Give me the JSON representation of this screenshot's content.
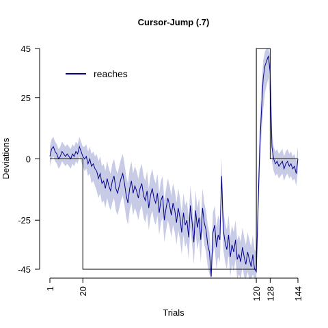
{
  "chart_data": {
    "type": "line",
    "title": "Cursor-Jump (.7)",
    "xlabel": "Trials",
    "ylabel": "Deviations",
    "xlim": [
      1,
      144
    ],
    "ylim": [
      -45,
      45
    ],
    "x_ticks": [
      1,
      20,
      120,
      128,
      144
    ],
    "y_ticks": [
      45,
      25,
      0,
      -25,
      -45
    ],
    "x_tick_labels": [
      "1",
      "20",
      "120",
      "128",
      "144"
    ],
    "y_tick_labels": [
      "45",
      "25",
      "0",
      "-25",
      "-45"
    ],
    "legend": {
      "position": "top-left",
      "entries": [
        {
          "label": "reaches",
          "color": "#00008b"
        }
      ]
    },
    "colors": {
      "line": "#00008b",
      "band": "#c8cbe6",
      "schedule": "#000000"
    },
    "schedule": {
      "x": [
        1,
        20,
        20,
        120,
        120,
        128,
        128,
        144
      ],
      "y": [
        0,
        0,
        -45,
        -45,
        45,
        45,
        0,
        0
      ]
    },
    "series": [
      {
        "name": "reaches",
        "values": [
          1,
          4,
          5,
          3,
          2,
          0,
          1,
          3,
          2,
          1,
          2,
          1,
          0,
          2,
          1,
          3,
          2,
          5,
          3,
          1,
          0,
          1,
          -2,
          0,
          -3,
          -2,
          -4,
          -5,
          -8,
          -6,
          -10,
          -9,
          -12,
          -8,
          -11,
          -13,
          -9,
          -7,
          -12,
          -14,
          -11,
          -8,
          -6,
          -10,
          -15,
          -18,
          -12,
          -9,
          -14,
          -11,
          -13,
          -16,
          -12,
          -10,
          -15,
          -17,
          -13,
          -20,
          -15,
          -12,
          -16,
          -18,
          -14,
          -22,
          -17,
          -15,
          -25,
          -20,
          -16,
          -19,
          -23,
          -18,
          -21,
          -26,
          -20,
          -24,
          -30,
          -22,
          -27,
          -25,
          -32,
          -19,
          -26,
          -34,
          -21,
          -28,
          -24,
          -33,
          -20,
          -26,
          -29,
          -35,
          -38,
          -48,
          -30,
          -27,
          -36,
          -31,
          -33,
          -7,
          -29,
          -34,
          -37,
          -31,
          -40,
          -35,
          -38,
          -33,
          -41,
          -39,
          -42,
          -36,
          -40,
          -43,
          -38,
          -41,
          -44,
          -39,
          -45,
          -46,
          -20,
          5,
          20,
          33,
          38,
          40,
          42,
          35,
          5,
          0,
          -2,
          -1,
          -3,
          -2,
          -1,
          -4,
          -2,
          -1,
          -3,
          -2,
          -4,
          -3,
          -6,
          0
        ],
        "lower": [
          -3,
          0,
          1,
          -1,
          -2,
          -4,
          -3,
          -1,
          -2,
          -3,
          -2,
          -3,
          -4,
          -2,
          -3,
          -1,
          -2,
          1,
          -1,
          -3,
          -5,
          -4,
          -7,
          -6,
          -10,
          -9,
          -11,
          -13,
          -16,
          -14,
          -18,
          -17,
          -20,
          -16,
          -19,
          -21,
          -18,
          -16,
          -21,
          -23,
          -20,
          -17,
          -15,
          -19,
          -24,
          -27,
          -21,
          -18,
          -23,
          -20,
          -22,
          -25,
          -21,
          -19,
          -24,
          -26,
          -22,
          -29,
          -24,
          -21,
          -25,
          -27,
          -23,
          -31,
          -26,
          -24,
          -34,
          -29,
          -25,
          -28,
          -32,
          -27,
          -30,
          -35,
          -29,
          -33,
          -39,
          -31,
          -36,
          -34,
          -41,
          -28,
          -35,
          -43,
          -30,
          -37,
          -33,
          -42,
          -29,
          -35,
          -38,
          -44,
          -47,
          -49,
          -39,
          -36,
          -45,
          -40,
          -42,
          -16,
          -37,
          -42,
          -45,
          -39,
          -48,
          -43,
          -46,
          -41,
          -49,
          -47,
          -49,
          -44,
          -48,
          -49,
          -46,
          -49,
          -49,
          -47,
          -49,
          -49,
          -30,
          -5,
          10,
          20,
          27,
          30,
          33,
          24,
          -1,
          -5,
          -7,
          -6,
          -8,
          -7,
          -6,
          -9,
          -7,
          -6,
          -8,
          -7,
          -9,
          -8,
          -11,
          -5
        ],
        "upper": [
          5,
          8,
          9,
          7,
          6,
          4,
          5,
          7,
          6,
          5,
          6,
          5,
          4,
          6,
          5,
          7,
          6,
          9,
          7,
          5,
          5,
          6,
          3,
          5,
          2,
          3,
          1,
          2,
          -1,
          1,
          -3,
          -2,
          -5,
          -1,
          -4,
          -6,
          -2,
          0,
          -4,
          -6,
          -3,
          0,
          2,
          -2,
          -7,
          -10,
          -4,
          -1,
          -6,
          -3,
          -5,
          -8,
          -4,
          -2,
          -7,
          -9,
          -5,
          -12,
          -7,
          -4,
          -8,
          -10,
          -6,
          -14,
          -9,
          -7,
          -17,
          -12,
          -8,
          -11,
          -15,
          -10,
          -13,
          -18,
          -12,
          -16,
          -22,
          -14,
          -19,
          -17,
          -24,
          -11,
          -18,
          -26,
          -13,
          -20,
          -16,
          -25,
          -12,
          -18,
          -21,
          -27,
          -30,
          -40,
          -22,
          -19,
          -28,
          -23,
          -25,
          0,
          -21,
          -26,
          -29,
          -23,
          -32,
          -27,
          -30,
          -25,
          -33,
          -31,
          -34,
          -28,
          -32,
          -35,
          -30,
          -33,
          -36,
          -31,
          -37,
          -38,
          -10,
          15,
          30,
          40,
          44,
          45,
          45,
          42,
          12,
          5,
          3,
          4,
          2,
          3,
          4,
          1,
          3,
          4,
          2,
          3,
          1,
          2,
          -1,
          5
        ]
      }
    ]
  }
}
